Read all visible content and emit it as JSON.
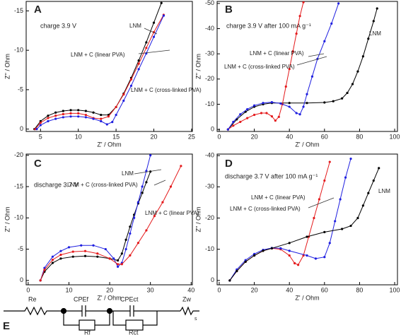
{
  "chart_data": [
    {
      "type": "line",
      "panel": "A",
      "subtitle": "charge 3.9 V",
      "xlabel": "Z' / Ohm",
      "ylabel": "Z'' / Ohm",
      "xlim": [
        3.1,
        25.1
      ],
      "xticks": [
        5,
        10,
        15,
        20,
        25
      ],
      "ylim": [
        0.3,
        -16.2
      ],
      "yticks": [
        0,
        -5,
        -10,
        -15
      ],
      "series": [
        {
          "name": "LNM",
          "color": "#000000",
          "x": [
            4.2,
            5,
            6,
            7,
            8,
            9,
            10,
            11,
            12,
            13,
            14,
            15,
            16,
            17,
            18,
            19,
            20,
            21
          ],
          "values": [
            0,
            -1,
            -1.7,
            -2.1,
            -2.3,
            -2.4,
            -2.4,
            -2.3,
            -2.1,
            -1.8,
            -1.8,
            -2.8,
            -4.5,
            -6.5,
            -8.7,
            -11,
            -13.5,
            -16
          ]
        },
        {
          "name": "LNM + C (linear PVA)",
          "color": "#e41a1c",
          "x": [
            4.3,
            5,
            6,
            7,
            8,
            9,
            10,
            11,
            12,
            13,
            14,
            15,
            16,
            17,
            18,
            19,
            20,
            21.3
          ],
          "values": [
            0,
            -0.8,
            -1.4,
            -1.7,
            -1.9,
            -2,
            -2,
            -1.8,
            -1.4,
            -1.3,
            -1.6,
            -2.8,
            -4.4,
            -6.3,
            -8.3,
            -10.3,
            -12.3,
            -14.5
          ]
        },
        {
          "name": "LNM + C (cross-linked PVA)",
          "color": "#1f1fe0",
          "x": [
            4.5,
            5,
            6,
            7,
            8,
            9,
            10,
            11,
            12,
            13,
            13.8,
            14.5,
            15,
            16,
            17,
            18,
            19,
            20,
            21.3
          ],
          "values": [
            0,
            -0.5,
            -1,
            -1.3,
            -1.5,
            -1.6,
            -1.6,
            -1.5,
            -1.3,
            -1,
            -0.6,
            -0.9,
            -1.8,
            -3.6,
            -5.5,
            -7.6,
            -9.6,
            -11.7,
            -14.4
          ]
        }
      ]
    },
    {
      "type": "line",
      "panel": "B",
      "subtitle": "charge 3.9 V after 100 mA g⁻¹",
      "xlabel": "Z' / Ohm",
      "ylabel": "Z'' / Ohm",
      "xlim": [
        -1.2,
        101.6
      ],
      "xticks": [
        0,
        20,
        40,
        60,
        80,
        100
      ],
      "ylim": [
        0.8,
        -50.8
      ],
      "yticks": [
        0,
        -10,
        -20,
        -30,
        -40,
        -50
      ],
      "series": [
        {
          "name": "LNM",
          "color": "#000000",
          "x": [
            5,
            10,
            15,
            20,
            25,
            30,
            40,
            50,
            60,
            65,
            70,
            73,
            76,
            79,
            82,
            85,
            88,
            90
          ],
          "values": [
            0,
            -4,
            -7,
            -9,
            -10,
            -10.5,
            -10.5,
            -10.5,
            -10.7,
            -11.2,
            -12.3,
            -14.5,
            -18,
            -23,
            -29,
            -36,
            -43,
            -48
          ]
        },
        {
          "name": "LNM + C (linear PVA)",
          "color": "#e41a1c",
          "x": [
            5,
            8,
            12,
            16,
            20,
            24,
            27,
            30,
            32,
            34,
            36,
            38,
            40,
            42,
            44,
            46,
            48
          ],
          "values": [
            0,
            -1.5,
            -3,
            -4.5,
            -5.8,
            -6.5,
            -6.5,
            -5.2,
            -3.5,
            -5,
            -10,
            -17,
            -24,
            -31,
            -38,
            -45,
            -50.5
          ]
        },
        {
          "name": "LNM + C (cross-linked PVA)",
          "color": "#1f1fe0",
          "x": [
            5,
            8,
            12,
            16,
            20,
            25,
            30,
            35,
            40,
            44,
            46,
            48,
            50,
            53,
            56,
            60,
            64,
            68
          ],
          "values": [
            0,
            -3,
            -6,
            -8,
            -9.5,
            -10.5,
            -10.8,
            -10.3,
            -9,
            -6.5,
            -6,
            -9,
            -14,
            -21,
            -28,
            -35,
            -42,
            -50
          ]
        }
      ]
    },
    {
      "type": "line",
      "panel": "C",
      "subtitle": "discharge 3.7 V",
      "xlabel": "Z' / Ohm",
      "ylabel": "Z'' / Ohm",
      "xlim": [
        -0.5,
        40.3
      ],
      "xticks": [
        0,
        10,
        20,
        30,
        40
      ],
      "ylim": [
        0.7,
        -20.2
      ],
      "yticks": [
        0,
        -5,
        -10,
        -15,
        -20
      ],
      "series": [
        {
          "name": "LNM",
          "color": "#000000",
          "x": [
            3,
            4,
            6,
            8,
            11,
            14,
            17,
            20,
            22,
            23,
            24,
            25,
            26,
            27,
            28,
            29,
            30
          ],
          "values": [
            0,
            -1.4,
            -2.8,
            -3.5,
            -3.8,
            -3.9,
            -3.8,
            -3.5,
            -3.2,
            -4.3,
            -6.5,
            -8.6,
            -10.5,
            -12.3,
            -14,
            -15.7,
            -17.4
          ]
        },
        {
          "name": "LNM + C (cross-linked PVA)",
          "color": "#1f1fe0",
          "x": [
            3,
            4,
            6,
            8,
            10,
            13,
            16,
            19,
            21,
            22,
            23,
            24,
            25,
            26,
            27,
            28,
            29,
            30
          ],
          "values": [
            0,
            -2,
            -3.8,
            -4.7,
            -5.3,
            -5.6,
            -5.6,
            -5,
            -3.5,
            -2.2,
            -2.8,
            -5,
            -7.5,
            -10,
            -12.5,
            -15,
            -17.5,
            -20
          ]
        },
        {
          "name": "LNM + C (linear PVA)",
          "color": "#e41a1c",
          "x": [
            3,
            4,
            6,
            8,
            11,
            14,
            17,
            20,
            22,
            23,
            25,
            27,
            29,
            31,
            33,
            35,
            37.5
          ],
          "values": [
            0,
            -1.7,
            -3.3,
            -4.1,
            -4.6,
            -4.7,
            -4.3,
            -3.5,
            -2.6,
            -2.6,
            -4,
            -6,
            -8,
            -10.3,
            -12.5,
            -15,
            -18.3
          ]
        }
      ]
    },
    {
      "type": "line",
      "panel": "D",
      "subtitle": "discharge 3.7 V after 100 mA g⁻¹",
      "xlabel": "Z' / Ohm",
      "ylabel": "Z'' / Ohm",
      "xlim": [
        -1.2,
        101.6
      ],
      "xticks": [
        0,
        20,
        40,
        60,
        80,
        100
      ],
      "ylim": [
        1.4,
        -40.5
      ],
      "yticks": [
        0,
        -10,
        -20,
        -30,
        -40
      ],
      "series": [
        {
          "name": "LNM + C (linear PVA)",
          "color": "#e41a1c",
          "x": [
            6,
            10,
            15,
            20,
            25,
            30,
            35,
            40,
            43,
            45,
            48,
            51,
            54,
            57,
            60,
            63
          ],
          "values": [
            0,
            -3,
            -6,
            -8,
            -9.5,
            -10.3,
            -10,
            -8,
            -5.5,
            -5,
            -8,
            -14,
            -20,
            -26,
            -32,
            -38
          ]
        },
        {
          "name": "LNM + C (cross-linked PVA)",
          "color": "#1f1fe0",
          "x": [
            6,
            10,
            15,
            20,
            25,
            30,
            35,
            40,
            50,
            55,
            60,
            63,
            66,
            69,
            72,
            75
          ],
          "values": [
            0,
            -3.5,
            -6.5,
            -8.5,
            -9.8,
            -10.4,
            -10.3,
            -9.5,
            -8,
            -7,
            -7.5,
            -12,
            -19,
            -26,
            -33,
            -39
          ]
        },
        {
          "name": "LNM",
          "color": "#000000",
          "x": [
            6,
            10,
            15,
            20,
            25,
            30,
            40,
            50,
            60,
            70,
            75,
            79,
            82,
            85,
            88,
            91
          ],
          "values": [
            0,
            -3,
            -6,
            -8,
            -9.5,
            -10.3,
            -12,
            -14,
            -15.5,
            -16.5,
            -17.5,
            -20,
            -24,
            -28,
            -32,
            -36
          ]
        }
      ]
    }
  ],
  "circuit": {
    "panel": "E",
    "elements": [
      "Re",
      "CPEf",
      "Rf",
      "CPEct",
      "Rct",
      "Zw"
    ],
    "subscript": "s"
  }
}
